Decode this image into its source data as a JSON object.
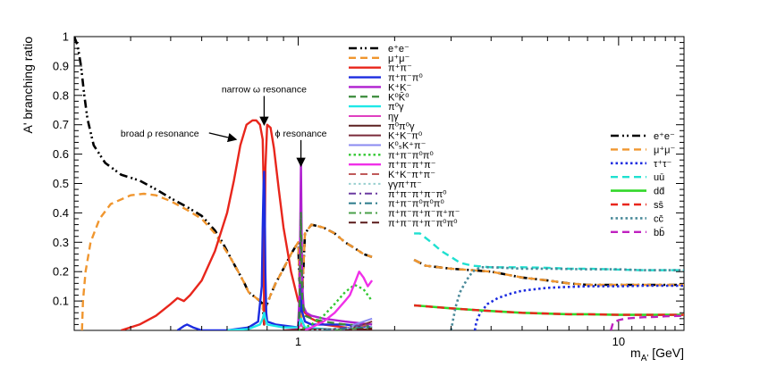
{
  "chart_data": {
    "type": "line",
    "title": "",
    "xlabel": "m_{A'} [GeV]",
    "ylabel": "A' branching ratio",
    "xscale": "log",
    "xlim": [
      0.2,
      16
    ],
    "ylim": [
      0,
      1
    ],
    "x_ticks": [
      {
        "value": 1,
        "label": "1"
      },
      {
        "value": 10,
        "label": "10"
      }
    ],
    "y_ticks": [
      {
        "value": 0.1,
        "label": "0.1"
      },
      {
        "value": 0.2,
        "label": "0.2"
      },
      {
        "value": 0.3,
        "label": "0.3"
      },
      {
        "value": 0.4,
        "label": "0.4"
      },
      {
        "value": 0.5,
        "label": "0.5"
      },
      {
        "value": 0.6,
        "label": "0.6"
      },
      {
        "value": 0.7,
        "label": "0.7"
      },
      {
        "value": 0.8,
        "label": "0.8"
      },
      {
        "value": 0.9,
        "label": "0.9"
      },
      {
        "value": 1,
        "label": "1"
      }
    ],
    "grid": false,
    "legend_placement": "upper-center and right",
    "annotations": [
      {
        "text": "narrow ω resonance",
        "target": [
          0.783,
          0.7
        ],
        "label_at": [
          0.783,
          0.81
        ],
        "anchor": "middle"
      },
      {
        "text": "broad ρ resonance",
        "target": [
          0.64,
          0.65
        ],
        "label_at": [
          0.37,
          0.66
        ],
        "anchor": "middle"
      },
      {
        "text": "ϕ resonance",
        "target": [
          1.02,
          0.56
        ],
        "label_at": [
          1.02,
          0.66
        ],
        "anchor": "middle"
      }
    ],
    "series": [
      {
        "name": "e⁺e⁻",
        "legend_group": "low",
        "color": "#000000",
        "dash": "dashdotdot",
        "width": 2.6,
        "x": [
          0.2,
          0.205,
          0.21,
          0.215,
          0.22,
          0.23,
          0.25,
          0.28,
          0.32,
          0.36,
          0.4,
          0.45,
          0.5,
          0.55,
          0.58,
          0.6,
          0.62,
          0.65,
          0.68,
          0.7,
          0.72,
          0.74,
          0.76,
          0.775,
          0.783,
          0.79,
          0.8,
          0.82,
          0.85,
          0.9,
          0.95,
          1.0,
          1.02,
          1.05,
          1.1,
          1.15,
          1.2,
          1.3,
          1.4,
          1.5,
          1.6,
          1.7
        ],
        "y": [
          1.0,
          0.97,
          0.9,
          0.8,
          0.72,
          0.63,
          0.57,
          0.53,
          0.51,
          0.48,
          0.45,
          0.42,
          0.39,
          0.34,
          0.3,
          0.27,
          0.24,
          0.2,
          0.16,
          0.13,
          0.12,
          0.11,
          0.1,
          0.09,
          0.02,
          0.08,
          0.09,
          0.12,
          0.16,
          0.21,
          0.26,
          0.3,
          0.02,
          0.33,
          0.36,
          0.355,
          0.35,
          0.33,
          0.3,
          0.28,
          0.26,
          0.25
        ]
      },
      {
        "name": "μ⁺μ⁻",
        "legend_group": "low",
        "color": "#f0962f",
        "dash": "dash",
        "width": 2.4,
        "x": [
          0.2115,
          0.213,
          0.217,
          0.225,
          0.24,
          0.26,
          0.3,
          0.33,
          0.36,
          0.4,
          0.45,
          0.5,
          0.55,
          0.58,
          0.6,
          0.62,
          0.65,
          0.68,
          0.7,
          0.72,
          0.74,
          0.76,
          0.775,
          0.783,
          0.79,
          0.8,
          0.82,
          0.85,
          0.9,
          0.95,
          1.0,
          1.02,
          1.05,
          1.1,
          1.15,
          1.2,
          1.3,
          1.4,
          1.5,
          1.6,
          1.7
        ],
        "y": [
          0.0,
          0.1,
          0.2,
          0.3,
          0.38,
          0.43,
          0.46,
          0.465,
          0.46,
          0.44,
          0.41,
          0.38,
          0.33,
          0.29,
          0.265,
          0.24,
          0.2,
          0.16,
          0.13,
          0.12,
          0.11,
          0.1,
          0.09,
          0.02,
          0.08,
          0.09,
          0.12,
          0.16,
          0.21,
          0.26,
          0.3,
          0.02,
          0.33,
          0.36,
          0.355,
          0.35,
          0.33,
          0.3,
          0.28,
          0.26,
          0.25
        ]
      },
      {
        "name": "π⁺π⁻",
        "legend_group": "low",
        "color": "#e8261c",
        "dash": "solid",
        "width": 2.4,
        "x": [
          0.28,
          0.32,
          0.36,
          0.4,
          0.42,
          0.44,
          0.46,
          0.5,
          0.55,
          0.6,
          0.63,
          0.66,
          0.69,
          0.72,
          0.74,
          0.76,
          0.775,
          0.78,
          0.783,
          0.79,
          0.8,
          0.82,
          0.84,
          0.87,
          0.9,
          0.95,
          1.0,
          1.05,
          1.1,
          1.2,
          1.4,
          1.7
        ],
        "y": [
          0.0,
          0.02,
          0.05,
          0.09,
          0.11,
          0.1,
          0.12,
          0.17,
          0.27,
          0.4,
          0.51,
          0.63,
          0.7,
          0.715,
          0.715,
          0.7,
          0.65,
          0.5,
          0.02,
          0.55,
          0.7,
          0.69,
          0.62,
          0.48,
          0.35,
          0.2,
          0.1,
          0.06,
          0.04,
          0.02,
          0.01,
          0.0
        ]
      },
      {
        "name": "π⁺π⁻π⁰",
        "legend_group": "low",
        "color": "#1c2ce0",
        "dash": "solid",
        "width": 2.4,
        "x": [
          0.42,
          0.44,
          0.45,
          0.47,
          0.5,
          0.6,
          0.7,
          0.75,
          0.77,
          0.775,
          0.78,
          0.783,
          0.786,
          0.79,
          0.795,
          0.8,
          0.85,
          1.0,
          1.015,
          1.02,
          1.025,
          1.05,
          1.1,
          1.2,
          1.4,
          1.7
        ],
        "y": [
          0.0,
          0.015,
          0.02,
          0.01,
          0.0,
          0.0,
          0.01,
          0.03,
          0.15,
          0.35,
          0.5,
          0.54,
          0.45,
          0.2,
          0.06,
          0.03,
          0.02,
          0.01,
          0.08,
          0.16,
          0.07,
          0.03,
          0.02,
          0.02,
          0.02,
          0.01
        ]
      },
      {
        "name": "K⁺K⁻",
        "legend_group": "low",
        "color": "#b020d0",
        "dash": "solid",
        "width": 2.4,
        "x": [
          0.99,
          1.0,
          1.01,
          1.015,
          1.02,
          1.025,
          1.03,
          1.04,
          1.06,
          1.1,
          1.2,
          1.4,
          1.7
        ],
        "y": [
          0.0,
          0.02,
          0.12,
          0.35,
          0.57,
          0.35,
          0.15,
          0.08,
          0.06,
          0.05,
          0.04,
          0.03,
          0.02
        ]
      },
      {
        "name": "K⁰K̄⁰",
        "legend_group": "low",
        "color": "#3a8a3a",
        "dash": "dash",
        "width": 2.2,
        "x": [
          1.0,
          1.01,
          1.015,
          1.02,
          1.025,
          1.03,
          1.05,
          1.1,
          1.2,
          1.4,
          1.7
        ],
        "y": [
          0.0,
          0.08,
          0.25,
          0.4,
          0.25,
          0.1,
          0.05,
          0.04,
          0.03,
          0.02,
          0.015
        ]
      },
      {
        "name": "π⁰γ",
        "legend_group": "low",
        "color": "#1fe8e8",
        "dash": "solid",
        "width": 2.4,
        "x": [
          0.6,
          0.7,
          0.76,
          0.775,
          0.783,
          0.79,
          0.8,
          0.9,
          1.0,
          1.02,
          1.05,
          1.2,
          1.5
        ],
        "y": [
          0.0,
          0.005,
          0.02,
          0.04,
          0.06,
          0.04,
          0.02,
          0.01,
          0.01,
          0.04,
          0.01,
          0.005,
          0.0
        ]
      },
      {
        "name": "ηγ",
        "legend_group": "low",
        "color": "#e040c0",
        "dash": "solid",
        "width": 2.0,
        "x": [
          0.9,
          1.0,
          1.02,
          1.04,
          1.1,
          1.3,
          1.6
        ],
        "y": [
          0.0,
          0.005,
          0.02,
          0.005,
          0.003,
          0.002,
          0.0
        ]
      },
      {
        "name": "π⁰π⁰γ",
        "legend_group": "low",
        "color": "#5c2020",
        "dash": "solid",
        "width": 2.0,
        "x": [
          0.9,
          1.0,
          1.05,
          1.2,
          1.5,
          1.7
        ],
        "y": [
          0.0,
          0.002,
          0.003,
          0.004,
          0.004,
          0.003
        ]
      },
      {
        "name": "K⁺K⁻π⁰",
        "legend_group": "low",
        "color": "#7a2a3a",
        "dash": "solid",
        "width": 2.0,
        "x": [
          1.45,
          1.5,
          1.6,
          1.7
        ],
        "y": [
          0.0,
          0.01,
          0.02,
          0.03
        ]
      },
      {
        "name": "K⁰ₛK⁺π⁻",
        "legend_group": "low",
        "color": "#8a8af0",
        "dash": "solid",
        "width": 2.0,
        "x": [
          1.4,
          1.5,
          1.6,
          1.7
        ],
        "y": [
          0.0,
          0.02,
          0.03,
          0.04
        ]
      },
      {
        "name": "π⁺π⁻π⁰π⁰",
        "legend_group": "low",
        "color": "#32c832",
        "dash": "dot",
        "width": 2.4,
        "x": [
          1.0,
          1.05,
          1.1,
          1.2,
          1.3,
          1.4,
          1.5,
          1.6,
          1.7
        ],
        "y": [
          0.0,
          0.01,
          0.02,
          0.05,
          0.09,
          0.13,
          0.155,
          0.14,
          0.1
        ]
      },
      {
        "name": "π⁺π⁻π⁺π⁻",
        "legend_group": "low",
        "color": "#f030e8",
        "dash": "solid",
        "width": 2.4,
        "x": [
          1.05,
          1.1,
          1.2,
          1.3,
          1.4,
          1.45,
          1.5,
          1.55,
          1.6,
          1.65,
          1.7
        ],
        "y": [
          0.0,
          0.01,
          0.03,
          0.06,
          0.1,
          0.12,
          0.16,
          0.2,
          0.18,
          0.15,
          0.17
        ]
      },
      {
        "name": "K⁺K⁻π⁺π⁻",
        "legend_group": "low",
        "color": "#c05a5a",
        "dash": "dash",
        "width": 2.0,
        "x": [
          1.45,
          1.55,
          1.65,
          1.7
        ],
        "y": [
          0.0,
          0.01,
          0.02,
          0.025
        ]
      },
      {
        "name": "γγπ⁺π⁻",
        "legend_group": "low",
        "color": "#9ad0d0",
        "dash": "dot",
        "width": 2.0,
        "x": [
          1.1,
          1.3,
          1.5,
          1.7
        ],
        "y": [
          0.0,
          0.005,
          0.01,
          0.01
        ]
      },
      {
        "name": "π⁺π⁻π⁺π⁻π⁰",
        "legend_group": "low",
        "color": "#6a3aa0",
        "dash": "dashdot",
        "width": 2.0,
        "x": [
          1.2,
          1.4,
          1.6,
          1.7
        ],
        "y": [
          0.0,
          0.01,
          0.02,
          0.02
        ]
      },
      {
        "name": "π⁺π⁻π⁰π⁰π⁰",
        "legend_group": "low",
        "color": "#2a7a8a",
        "dash": "dashdot",
        "width": 2.0,
        "x": [
          1.2,
          1.4,
          1.6,
          1.7
        ],
        "y": [
          0.0,
          0.005,
          0.01,
          0.01
        ]
      },
      {
        "name": "π⁺π⁻π⁺π⁻π⁺π⁻",
        "legend_group": "low",
        "color": "#4aa04a",
        "dash": "dashdot",
        "width": 2.0,
        "x": [
          1.3,
          1.5,
          1.7
        ],
        "y": [
          0.0,
          0.005,
          0.008
        ]
      },
      {
        "name": "π⁺π⁻π⁺π⁻π⁰π⁰",
        "legend_group": "low",
        "color": "#5a1a1a",
        "dash": "dash",
        "width": 2.0,
        "x": [
          1.4,
          1.55,
          1.7
        ],
        "y": [
          0.0,
          0.004,
          0.006
        ]
      },
      {
        "name": "e⁺e⁻",
        "legend_group": "high",
        "color": "#000000",
        "dash": "dashdotdot",
        "width": 2.6,
        "x": [
          2.3,
          2.5,
          3.0,
          3.5,
          4.0,
          5.0,
          6.0,
          7.0,
          8.0,
          9.0,
          10.0,
          11.0,
          12.0,
          14.0,
          16.0
        ],
        "y": [
          0.24,
          0.22,
          0.21,
          0.205,
          0.2,
          0.18,
          0.17,
          0.16,
          0.155,
          0.155,
          0.155,
          0.155,
          0.155,
          0.155,
          0.155
        ]
      },
      {
        "name": "μ⁺μ⁻",
        "legend_group": "high",
        "color": "#f0962f",
        "dash": "dash",
        "width": 2.4,
        "x": [
          2.3,
          2.5,
          3.0,
          3.5,
          4.0,
          5.0,
          6.0,
          7.0,
          8.0,
          9.0,
          10.0,
          11.0,
          12.0,
          14.0,
          16.0
        ],
        "y": [
          0.24,
          0.22,
          0.21,
          0.205,
          0.2,
          0.18,
          0.17,
          0.16,
          0.155,
          0.155,
          0.155,
          0.155,
          0.155,
          0.155,
          0.155
        ]
      },
      {
        "name": "τ⁺τ⁻",
        "legend_group": "high",
        "color": "#1c2ce0",
        "dash": "dot",
        "width": 2.6,
        "x": [
          3.56,
          3.6,
          3.7,
          3.9,
          4.2,
          4.6,
          5.0,
          6.0,
          7.0,
          8.0,
          9.0,
          10.0,
          12.0,
          14.0,
          16.0
        ],
        "y": [
          0.0,
          0.03,
          0.06,
          0.09,
          0.11,
          0.125,
          0.135,
          0.145,
          0.148,
          0.15,
          0.15,
          0.15,
          0.152,
          0.152,
          0.152
        ]
      },
      {
        "name": "uū",
        "legend_group": "high",
        "color": "#1fe0d0",
        "dash": "dash",
        "width": 2.4,
        "x": [
          2.3,
          2.4,
          2.6,
          2.8,
          3.0,
          3.2,
          3.5,
          4.0,
          5.0,
          6.0,
          7.0,
          8.0,
          10.0,
          12.0,
          14.0,
          16.0
        ],
        "y": [
          0.33,
          0.33,
          0.3,
          0.27,
          0.25,
          0.23,
          0.22,
          0.215,
          0.215,
          0.213,
          0.21,
          0.21,
          0.207,
          0.205,
          0.205,
          0.205
        ]
      },
      {
        "name": "dd̄",
        "legend_group": "high",
        "color": "#32d82a",
        "dash": "solid",
        "width": 2.6,
        "x": [
          2.3,
          2.5,
          3.0,
          3.5,
          4.0,
          5.0,
          6.0,
          7.0,
          8.0,
          10.0,
          12.0,
          14.0,
          16.0
        ],
        "y": [
          0.085,
          0.082,
          0.075,
          0.07,
          0.066,
          0.06,
          0.057,
          0.055,
          0.055,
          0.053,
          0.053,
          0.053,
          0.053
        ]
      },
      {
        "name": "ss̄",
        "legend_group": "high",
        "color": "#e8261c",
        "dash": "dash",
        "width": 2.4,
        "x": [
          2.3,
          2.5,
          3.0,
          3.5,
          4.0,
          5.0,
          6.0,
          7.0,
          8.0,
          10.0,
          12.0,
          14.0,
          16.0
        ],
        "y": [
          0.085,
          0.082,
          0.075,
          0.07,
          0.066,
          0.06,
          0.057,
          0.055,
          0.055,
          0.053,
          0.053,
          0.053,
          0.053
        ]
      },
      {
        "name": "cc̄",
        "legend_group": "high",
        "color": "#4a8a9a",
        "dash": "dot",
        "width": 2.6,
        "x": [
          3.0,
          3.05,
          3.1,
          3.2,
          3.35,
          3.5,
          3.7,
          4.0,
          5.0,
          6.0,
          8.0,
          10.0,
          12.0,
          14.0,
          16.0
        ],
        "y": [
          0.0,
          0.04,
          0.08,
          0.13,
          0.17,
          0.2,
          0.215,
          0.215,
          0.21,
          0.21,
          0.208,
          0.208,
          0.205,
          0.205,
          0.205
        ]
      },
      {
        "name": "bb̄",
        "legend_group": "high",
        "color": "#c020c0",
        "dash": "dash",
        "width": 2.4,
        "x": [
          9.46,
          9.6,
          10.0,
          10.5,
          11.0,
          12.0,
          13.0,
          14.0,
          16.0
        ],
        "y": [
          0.0,
          0.025,
          0.035,
          0.04,
          0.042,
          0.045,
          0.046,
          0.048,
          0.05
        ]
      }
    ]
  }
}
